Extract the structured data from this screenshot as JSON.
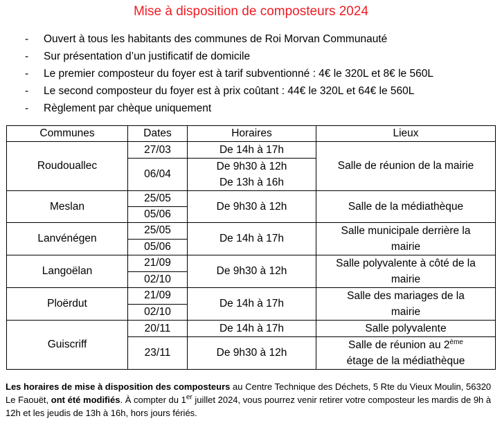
{
  "title": "Mise à disposition de composteurs 2024",
  "bullets": [
    "Ouvert à tous les habitants des communes de Roi Morvan Communauté",
    "Sur présentation d’un justificatif de domicile",
    "Le premier composteur du foyer est à tarif subventionné : 4€ le 320L et 8€ le 560L",
    "Le second composteur du foyer est à prix coûtant : 44€ le 320L et 64€ le 560L",
    "Règlement par chèque uniquement"
  ],
  "bullet_marker": "-",
  "table": {
    "headers": [
      "Communes",
      "Dates",
      "Horaires",
      "Lieux"
    ],
    "roudouallec": {
      "commune": "Roudouallec",
      "date1": "27/03",
      "hours1": "De 14h à 17h",
      "date2": "06/04",
      "hours2a": "De 9h30 à 12h",
      "hours2b": "De 13h à 16h",
      "lieu": "Salle de réunion de la mairie"
    },
    "meslan": {
      "commune": "Meslan",
      "date1": "25/05",
      "date2": "05/06",
      "hours": "De 9h30 à 12h",
      "lieu": "Salle de la médiathèque"
    },
    "lanvenegen": {
      "commune": "Lanvénégen",
      "date1": "25/05",
      "date2": "05/06",
      "hours": "De 14h à 17h",
      "lieu1": "Salle municipale derrière la",
      "lieu2": "mairie"
    },
    "langoelan": {
      "commune": "Langoëlan",
      "date1": "21/09",
      "date2": "02/10",
      "hours": "De 9h30 à 12h",
      "lieu1": "Salle polyvalente à côté de la",
      "lieu2": "mairie"
    },
    "ploerdut": {
      "commune": "Ploërdut",
      "date1": "21/09",
      "date2": "02/10",
      "hours": "De 14h à 17h",
      "lieu1": "Salle des mariages de la",
      "lieu2": "mairie"
    },
    "guiscriff": {
      "commune": "Guiscriff",
      "date1": "20/11",
      "hours1": "De 14h à 17h",
      "lieu_a": "Salle polyvalente",
      "date2": "23/11",
      "hours2": "De 9h30 à 12h",
      "lieu_b1": "Salle de réunion au 2",
      "lieu_b_sup": "ème",
      "lieu_b2": "étage de la médiathèque"
    }
  },
  "footer": {
    "p1_bold": "Les horaires de mise à disposition des composteurs",
    "p2": " au Centre Technique des Déchets, 5 Rte du Vieux Moulin, 56320 Le Faouët, ",
    "p3_bold": "ont été modifiés",
    "p4": ". À compter du 1",
    "p4_sup": "er",
    "p5": " juillet 2024, vous pourrez venir retirer votre composteur les mardis de 9h à 12h et les jeudis de 13h à 16h, hors jours fériés."
  }
}
